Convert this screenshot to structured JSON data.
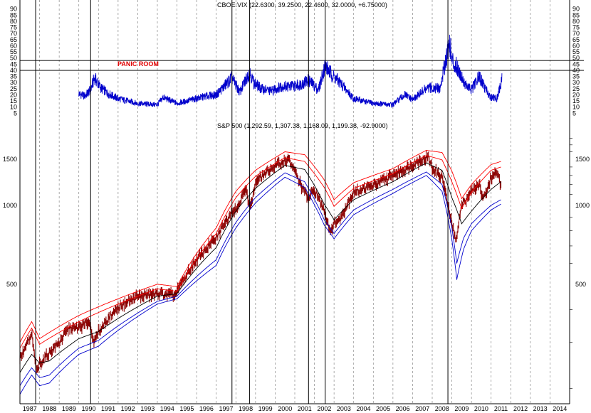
{
  "chart_data": [
    {
      "type": "line",
      "title": "CBOE:VIX (22.6300, 39.2500, 22.4600, 32.0000, +6.75000)",
      "annotation": "PANIC ROOM",
      "panic_levels": [
        40,
        48
      ],
      "y_ticks": [
        5,
        10,
        15,
        20,
        25,
        30,
        35,
        40,
        45,
        50,
        55,
        60,
        65,
        70,
        75,
        80,
        85,
        90
      ],
      "ylim": [
        0,
        95
      ],
      "series": [
        {
          "color": "#0000cc",
          "x": [
            1990.0,
            1990.3,
            1990.6,
            1990.8,
            1991.1,
            1991.5,
            1992.0,
            1993.0,
            1994.0,
            1994.3,
            1995.0,
            1996.0,
            1996.5,
            1997.0,
            1997.8,
            1998.2,
            1998.7,
            1998.9,
            1999.3,
            1999.8,
            2000.3,
            2000.8,
            2001.2,
            2001.7,
            2002.2,
            2002.55,
            2002.8,
            2003.3,
            2004.0,
            2005.0,
            2006.0,
            2006.6,
            2007.0,
            2007.6,
            2008.0,
            2008.4,
            2008.8,
            2008.9,
            2009.0,
            2009.3,
            2009.7,
            2010.0,
            2010.4,
            2010.7,
            2011.0,
            2011.3,
            2011.55
          ],
          "values": [
            21,
            19,
            24,
            34,
            26,
            21,
            17,
            13,
            12,
            18,
            13,
            17,
            19,
            20,
            34,
            22,
            39,
            30,
            25,
            23,
            27,
            27,
            28,
            32,
            24,
            44,
            38,
            30,
            17,
            13,
            12,
            20,
            16,
            24,
            26,
            25,
            58,
            62,
            48,
            42,
            28,
            24,
            35,
            25,
            18,
            17,
            32
          ]
        }
      ]
    },
    {
      "type": "line",
      "title": "S&P 500 (1,292.59, 1,307.38, 1,168.09, 1,199.38, -92.9000)",
      "y_ticks": [
        500,
        1000,
        1500
      ],
      "x_ticks": [
        "1987",
        "1988",
        "1989",
        "1990",
        "1991",
        "1992",
        "1993",
        "1994",
        "1995",
        "1996",
        "1997",
        "1998",
        "1999",
        "2000",
        "2001",
        "2002",
        "2003",
        "2004",
        "2005",
        "2006",
        "2007",
        "2008",
        "2009",
        "2010",
        "2011",
        "2012",
        "2013",
        "2014"
      ],
      "xlim": [
        1987.0,
        2015.0
      ],
      "ylim": [
        175,
        1900
      ],
      "log_scale": true,
      "event_lines": [
        1987.8,
        1990.6,
        1997.8,
        1998.7,
        2001.7,
        2002.55,
        2008.8
      ],
      "series": [
        {
          "color": "#8b0000",
          "x": [
            1987.0,
            1987.6,
            1987.85,
            1988.0,
            1989.0,
            1989.5,
            1990.0,
            1990.5,
            1990.8,
            1991.0,
            1992.0,
            1993.0,
            1994.0,
            1994.9,
            1995.0,
            1996.0,
            1997.0,
            1997.8,
            1998.0,
            1998.5,
            1998.75,
            1999.0,
            2000.0,
            2000.7,
            2001.0,
            2001.3,
            2001.7,
            2002.0,
            2002.5,
            2002.8,
            2003.0,
            2003.3,
            2004.0,
            2005.0,
            2006.0,
            2007.0,
            2007.8,
            2008.0,
            2008.5,
            2008.8,
            2009.0,
            2009.2,
            2009.5,
            2010.0,
            2010.4,
            2010.6,
            2011.0,
            2011.3,
            2011.5
          ],
          "values": [
            260,
            320,
            230,
            250,
            300,
            340,
            340,
            360,
            300,
            330,
            410,
            450,
            460,
            455,
            470,
            620,
            750,
            950,
            960,
            1150,
            980,
            1220,
            1420,
            1500,
            1350,
            1200,
            1050,
            1150,
            950,
            800,
            850,
            880,
            1120,
            1190,
            1300,
            1430,
            1530,
            1380,
            1280,
            1000,
            850,
            720,
            1000,
            1130,
            1200,
            1050,
            1280,
            1330,
            1200
          ]
        },
        {
          "color": "#ff0000",
          "x": [
            1987.0,
            1987.6,
            1988.0,
            1990.0,
            1994.0,
            1995.0,
            1997.0,
            1998.0,
            1999.0,
            2000.5,
            2001.5,
            2002.5,
            2003.0,
            2004.0,
            2006.0,
            2007.7,
            2008.5,
            2009.0,
            2009.5,
            2010.0,
            2011.0,
            2011.5
          ],
          "values": [
            300,
            360,
            310,
            380,
            500,
            490,
            820,
            1130,
            1360,
            1600,
            1560,
            1250,
            1050,
            1220,
            1380,
            1620,
            1590,
            1350,
            1060,
            1200,
            1430,
            1470
          ]
        },
        {
          "color": "#ff0000",
          "x": [
            1987.0,
            1987.6,
            1988.0,
            1990.0,
            1994.0,
            1995.0,
            1997.0,
            1998.0,
            1999.0,
            2000.5,
            2001.5,
            2002.5,
            2003.0,
            2004.0,
            2006.0,
            2007.7,
            2008.5,
            2009.0,
            2009.5,
            2010.0,
            2011.0,
            2011.5
          ],
          "values": [
            285,
            340,
            295,
            360,
            480,
            470,
            780,
            1070,
            1290,
            1520,
            1470,
            1170,
            990,
            1160,
            1320,
            1550,
            1490,
            1230,
            970,
            1120,
            1360,
            1400
          ]
        },
        {
          "color": "#000000",
          "x": [
            1987.0,
            1987.6,
            1988.0,
            1988.5,
            1990.0,
            1991.0,
            1994.0,
            1995.0,
            1997.0,
            1998.0,
            1999.0,
            2000.5,
            2001.5,
            2002.5,
            2003.0,
            2004.0,
            2006.0,
            2007.7,
            2008.5,
            2009.0,
            2009.5,
            2010.0,
            2011.0,
            2011.5
          ],
          "values": [
            230,
            270,
            250,
            255,
            310,
            330,
            450,
            460,
            690,
            950,
            1160,
            1420,
            1370,
            1010,
            880,
            1050,
            1230,
            1450,
            1360,
            1070,
            850,
            950,
            1150,
            1230
          ]
        },
        {
          "color": "#0000cc",
          "x": [
            1987.0,
            1987.6,
            1988.0,
            1988.5,
            1990.0,
            1991.0,
            1994.0,
            1995.0,
            1997.0,
            1998.0,
            1999.0,
            2000.5,
            2001.5,
            2002.5,
            2003.0,
            2004.0,
            2006.0,
            2007.7,
            2008.5,
            2009.0,
            2009.25,
            2009.6,
            2010.0,
            2011.0,
            2011.5
          ],
          "values": [
            205,
            240,
            220,
            225,
            285,
            305,
            430,
            450,
            620,
            860,
            1070,
            1330,
            1230,
            880,
            780,
            960,
            1150,
            1340,
            1200,
            820,
            600,
            750,
            850,
            1000,
            1050
          ]
        },
        {
          "color": "#0000cc",
          "x": [
            1987.0,
            1987.6,
            1988.0,
            1988.5,
            1990.0,
            1991.0,
            1994.0,
            1995.0,
            1997.0,
            1998.0,
            1999.0,
            2000.5,
            2001.5,
            2002.5,
            2003.0,
            2004.0,
            2006.0,
            2007.7,
            2008.5,
            2009.0,
            2009.25,
            2009.6,
            2010.0,
            2011.0,
            2011.5
          ],
          "values": [
            190,
            225,
            205,
            210,
            270,
            290,
            420,
            440,
            590,
            820,
            1020,
            1280,
            1170,
            840,
            745,
            920,
            1110,
            1300,
            1130,
            740,
            520,
            680,
            800,
            960,
            1010
          ]
        }
      ]
    }
  ]
}
